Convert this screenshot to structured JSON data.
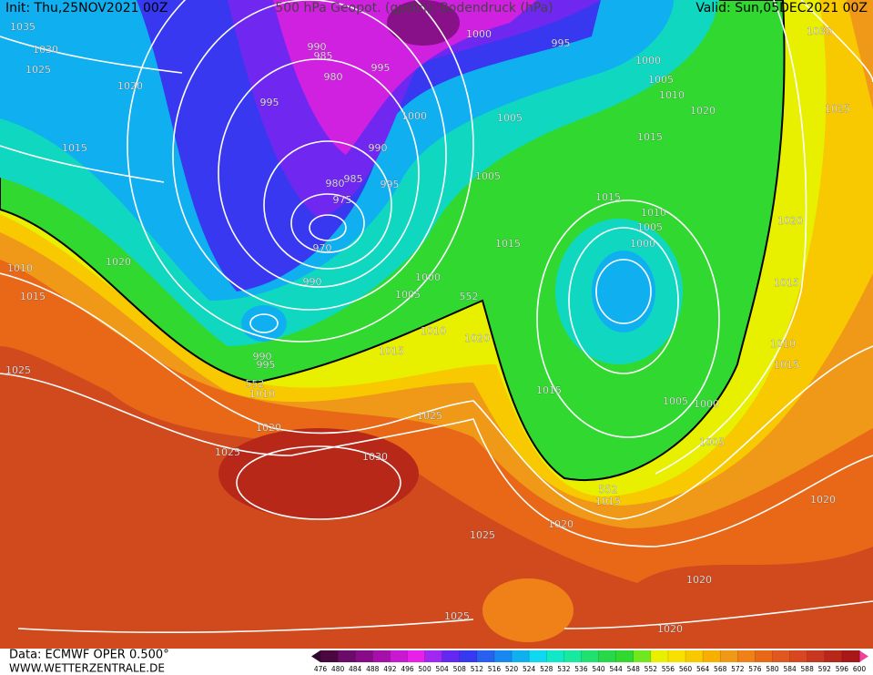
{
  "header": {
    "init": "Init: Thu,25NOV2021 00Z",
    "title": "500 hPa Geopot. (gpdm), Bodendruck (hPa)",
    "valid": "Valid: Sun,05DEC2021 00Z"
  },
  "footer": {
    "source": "Data: ECMWF OPER 0.500°",
    "site": "WWW.WETTERZENTRALE.DE"
  },
  "colorbar": {
    "ticks": [
      476,
      480,
      484,
      488,
      492,
      496,
      500,
      504,
      508,
      512,
      516,
      520,
      524,
      528,
      532,
      536,
      540,
      544,
      548,
      552,
      556,
      560,
      564,
      568,
      572,
      576,
      580,
      584,
      588,
      592,
      596,
      600
    ],
    "colors": [
      "#4a0840",
      "#6a0c68",
      "#880c88",
      "#a410a8",
      "#c818d0",
      "#e820e8",
      "#a028f0",
      "#6428f0",
      "#3838f0",
      "#2860f0",
      "#1888f0",
      "#10b0f0",
      "#10d8f0",
      "#10e8c8",
      "#18e8a0",
      "#20e070",
      "#28d848",
      "#30d830",
      "#70e820",
      "#e8f000",
      "#f8e000",
      "#f8c800",
      "#f8b000",
      "#f09818",
      "#f08018",
      "#e86818",
      "#e05820",
      "#d84820",
      "#c83820",
      "#b82818",
      "#a81818"
    ],
    "low_color": "#300630",
    "high_color": "#f040a0"
  },
  "isobar_labels": [
    1035,
    1030,
    1025,
    1020,
    1015,
    1010,
    1015,
    1020,
    1025,
    990,
    985,
    980,
    995,
    995,
    1000,
    990,
    985,
    980,
    995,
    975,
    970,
    990,
    1000,
    1005,
    1010,
    1015,
    990,
    995,
    1010,
    1020,
    1025,
    1030,
    1025,
    1020,
    1000,
    995,
    1005,
    1005,
    1000,
    1005,
    1010,
    1020,
    1015,
    1015,
    1015,
    1010,
    1005,
    1000,
    1030,
    1025,
    1020,
    1015,
    1010,
    1015,
    1015,
    1005,
    1000,
    1005,
    1015,
    1020,
    1025,
    1020,
    1020,
    1025,
    1020,
    552,
    552,
    552
  ]
}
